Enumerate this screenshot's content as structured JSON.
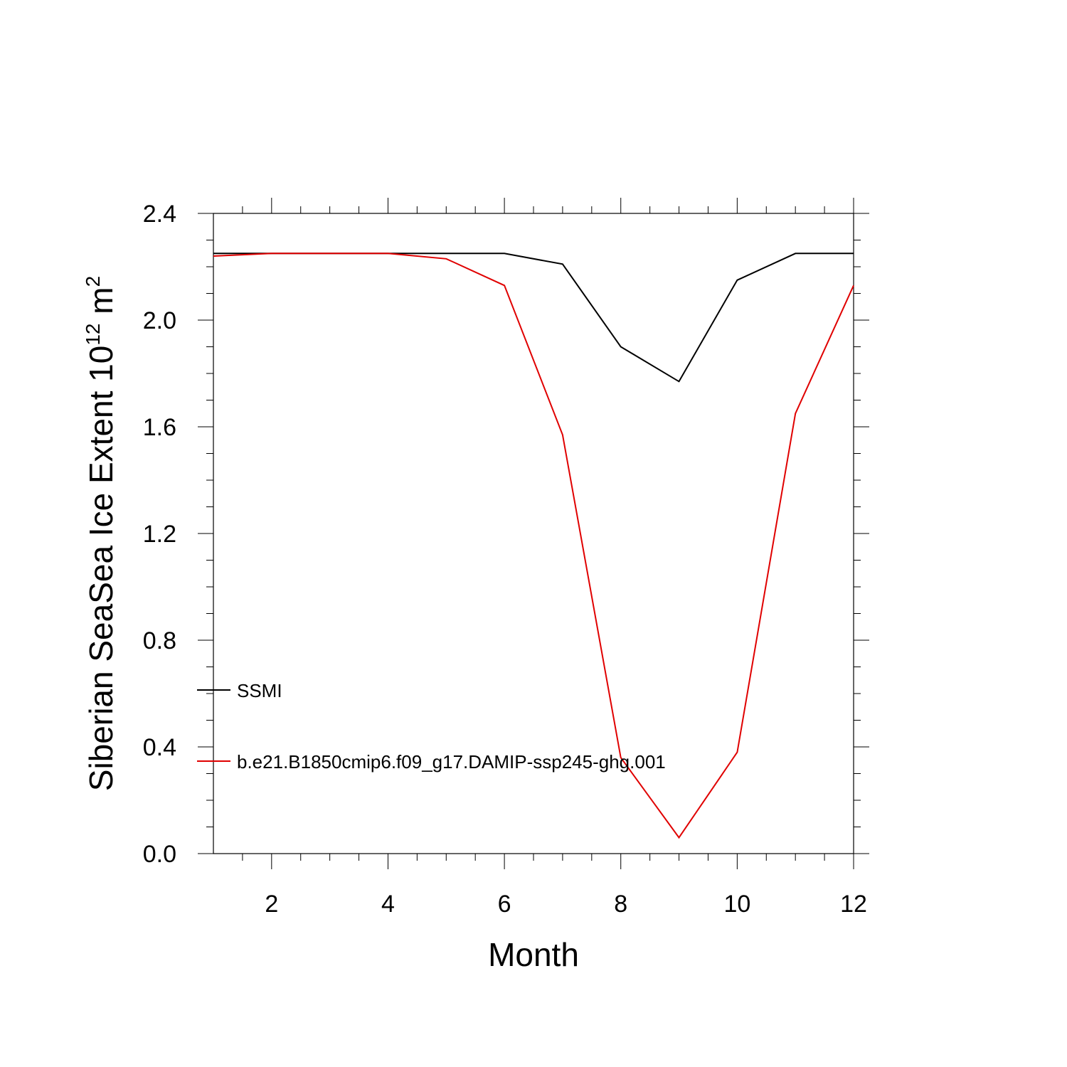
{
  "chart_data": {
    "type": "line",
    "title": "",
    "xlabel": "Month",
    "ylabel_main": "Siberian SeaSea Ice Extent 10",
    "ylabel_exp": "12",
    "ylabel_unit": "m",
    "ylabel_unit_exp": "2",
    "xlim": [
      1,
      12
    ],
    "ylim": [
      0,
      2.4
    ],
    "x_ticks": [
      2,
      4,
      6,
      8,
      10,
      12
    ],
    "x_tick_labels": [
      "2",
      "4",
      "6",
      "8",
      "10",
      "12"
    ],
    "y_ticks": [
      0,
      0.4,
      0.8,
      1.2,
      1.6,
      2.0,
      2.4
    ],
    "y_tick_labels": [
      "0.0",
      "0.4",
      "0.8",
      "1.2",
      "1.6",
      "2.0",
      "2.4"
    ],
    "x": [
      1,
      2,
      3,
      4,
      5,
      6,
      7,
      8,
      9,
      10,
      11,
      12
    ],
    "series": [
      {
        "name": "SSMI",
        "color": "#000000",
        "values": [
          2.25,
          2.25,
          2.25,
          2.25,
          2.25,
          2.25,
          2.21,
          1.9,
          1.77,
          2.15,
          2.25,
          2.25
        ]
      },
      {
        "name": "b.e21.B1850cmip6.f09_g17.DAMIP-ssp245-ghg.001",
        "color": "#e00000",
        "values": [
          2.24,
          2.25,
          2.25,
          2.25,
          2.23,
          2.13,
          1.57,
          0.36,
          0.06,
          0.38,
          1.65,
          2.13
        ]
      }
    ],
    "legend_placement": "lower-left",
    "grid": false
  }
}
